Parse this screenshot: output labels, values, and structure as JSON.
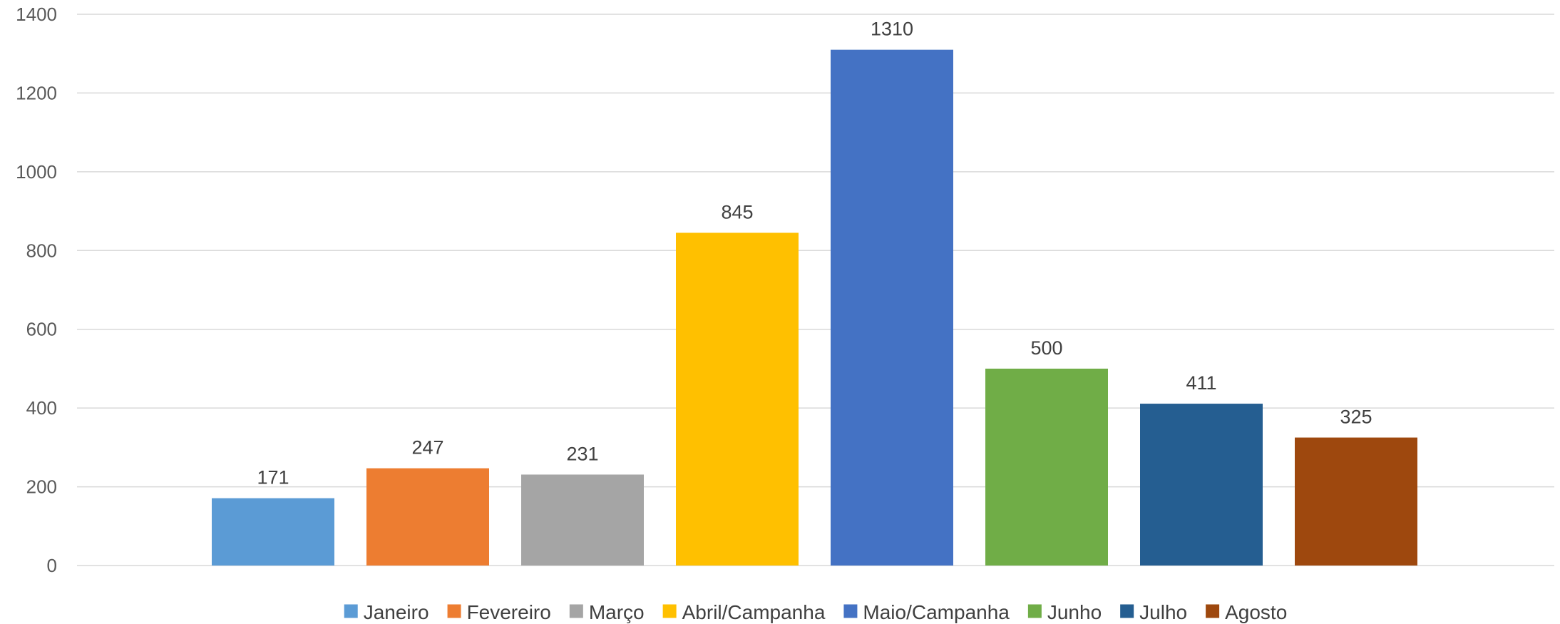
{
  "chart_data": {
    "type": "bar",
    "title": "",
    "xlabel": "",
    "ylabel": "",
    "ylim": [
      0,
      1400
    ],
    "yticks": [
      0,
      200,
      400,
      600,
      800,
      1000,
      1200,
      1400
    ],
    "grid": true,
    "legend_position": "bottom",
    "categories": [
      "Janeiro",
      "Fevereiro",
      "Março",
      "Abril/Campanha",
      "Maio/Campanha",
      "Junho",
      "Julho",
      "Agosto"
    ],
    "values": [
      171,
      247,
      231,
      845,
      1310,
      500,
      411,
      325
    ],
    "colors": [
      "#5b9bd5",
      "#ed7d31",
      "#a5a5a5",
      "#ffc000",
      "#4472c4",
      "#70ad47",
      "#255e91",
      "#9e480e"
    ],
    "data_labels": [
      "171",
      "247",
      "231",
      "845",
      "1310",
      "500",
      "411",
      "325"
    ]
  }
}
